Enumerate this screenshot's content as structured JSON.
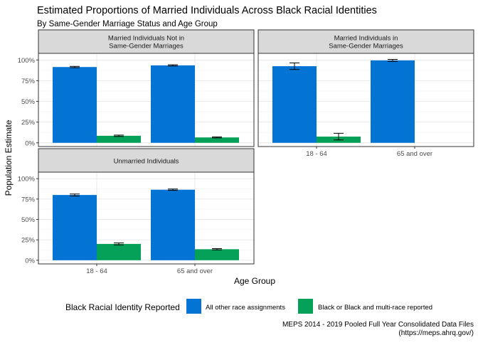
{
  "title": "Estimated Proportions of Married Individuals Across Black Racial Identities",
  "subtitle": "By Same-Gender Marriage Status and Age Group",
  "caption_line1": "MEPS 2014 - 2019 Pooled Full Year Consolidated Data Files",
  "caption_line2": "(https://meps.ahrq.gov/)",
  "chart_data": {
    "type": "bar",
    "xlabel": "Age Group",
    "ylabel": "Population Estimate",
    "ylim": [
      0,
      1.0
    ],
    "yticks": [
      "0%",
      "25%",
      "50%",
      "75%",
      "100%"
    ],
    "categories": [
      "18 - 64",
      "65 and over"
    ],
    "legend": {
      "title": "Black Racial Identity Reported",
      "position": "bottom",
      "entries": [
        {
          "name": "All other race assignments",
          "color": "#0474D4"
        },
        {
          "name": "Black or Black and multi-race reported",
          "color": "#06A158"
        }
      ]
    },
    "panels": [
      {
        "strip": [
          "Married Individuals Not in",
          "Same-Gender Marriages"
        ],
        "series": [
          {
            "name": "All other race assignments",
            "values": [
              0.915,
              0.935
            ],
            "error": [
              0.008,
              0.007
            ]
          },
          {
            "name": "Black or Black and multi-race reported",
            "values": [
              0.085,
              0.065
            ],
            "error": [
              0.008,
              0.006
            ]
          }
        ]
      },
      {
        "strip": [
          "Married Individuals in",
          "Same-Gender Marriages"
        ],
        "series": [
          {
            "name": "All other race assignments",
            "values": [
              0.925,
              0.995
            ],
            "error": [
              0.04,
              0.012
            ]
          },
          {
            "name": "Black or Black and multi-race reported",
            "values": [
              0.075,
              null
            ],
            "error": [
              0.04,
              null
            ]
          }
        ]
      },
      {
        "strip": [
          "Unmarried Individuals"
        ],
        "series": [
          {
            "name": "All other race assignments",
            "values": [
              0.8,
              0.865
            ],
            "error": [
              0.012,
              0.008
            ]
          },
          {
            "name": "Black or Black and multi-race reported",
            "values": [
              0.2,
              0.135
            ],
            "error": [
              0.012,
              0.008
            ]
          }
        ]
      }
    ]
  }
}
